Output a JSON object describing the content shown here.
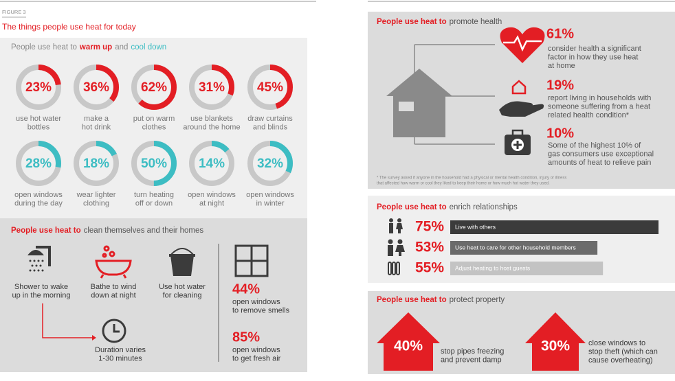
{
  "left": {
    "figure_label": "FIGURE 3",
    "title": "The things people use heat for today",
    "warm_cool": {
      "heading": [
        "People use heat to",
        "warm up",
        "and",
        "cool down"
      ],
      "items": [
        {
          "value": 23,
          "label": "23%",
          "text": [
            "use hot water",
            "bottles"
          ],
          "color": "#e31e24"
        },
        {
          "value": 36,
          "label": "36%",
          "text": [
            "make a",
            "hot drink"
          ],
          "color": "#e31e24"
        },
        {
          "value": 62,
          "label": "62%",
          "text": [
            "put on warm",
            "clothes"
          ],
          "color": "#e31e24"
        },
        {
          "value": 31,
          "label": "31%",
          "text": [
            "use blankets",
            "around the home"
          ],
          "color": "#e31e24"
        },
        {
          "value": 45,
          "label": "45%",
          "text": [
            "draw curtains",
            "and blinds"
          ],
          "color": "#e31e24"
        },
        {
          "value": 28,
          "label": "28%",
          "text": [
            "open windows",
            "during the day"
          ],
          "color": "#3dbdc3"
        },
        {
          "value": 18,
          "label": "18%",
          "text": [
            "wear lighter",
            "clothing"
          ],
          "color": "#3dbdc3"
        },
        {
          "value": 50,
          "label": "50%",
          "text": [
            "turn heating",
            "off or down"
          ],
          "color": "#3dbdc3"
        },
        {
          "value": 14,
          "label": "14%",
          "text": [
            "open windows",
            "at night"
          ],
          "color": "#3dbdc3"
        },
        {
          "value": 32,
          "label": "32%",
          "text": [
            "open windows",
            "in winter"
          ],
          "color": "#3dbdc3"
        }
      ]
    },
    "clean": {
      "heading": [
        "People use heat to",
        "clean themselves and their homes"
      ],
      "icons": [
        {
          "text": [
            "Shower to wake",
            "up in the morning"
          ]
        },
        {
          "text": [
            "Bathe to wind",
            "down at night"
          ]
        },
        {
          "text": [
            "Use hot water",
            "for cleaning"
          ]
        }
      ],
      "duration": [
        "Duration varies",
        "1-30 minutes"
      ],
      "windows": [
        {
          "label": "44%",
          "text": [
            "open windows",
            "to remove smells"
          ]
        },
        {
          "label": "85%",
          "text": [
            "open windows",
            "to get fresh air"
          ]
        }
      ]
    }
  },
  "right": {
    "health": {
      "heading": [
        "People use heat to",
        "promote health"
      ],
      "stats": [
        {
          "label": "61%",
          "text": [
            "consider health a significant",
            "factor in how they use heat",
            "at home"
          ]
        },
        {
          "label": "19%",
          "text": [
            "report living in households with",
            "someone suffering from a heat",
            "related health condition*"
          ]
        },
        {
          "label": "10%",
          "text": [
            "Some of the highest 10% of",
            "gas consumers use exceptional",
            "amounts of heat to relieve pain"
          ]
        }
      ],
      "footnote": [
        "* The survey asked if anyone in the household had a physical or mental health condition, injury or illness",
        "that affected how warm or cool they liked to keep their home or how much hot water they used."
      ]
    },
    "relationships": {
      "heading": [
        "People use heat to",
        "enrich relationships"
      ],
      "rows": [
        {
          "value": 75,
          "label": "75%",
          "text": "Live with others",
          "color": "#3b3b3b"
        },
        {
          "value": 53,
          "label": "53%",
          "text": "Use heat to care for other household members",
          "color": "#6b6b6b"
        },
        {
          "value": 55,
          "label": "55%",
          "text": "Adjust heating to host guests",
          "color": "#c3c3c3"
        }
      ]
    },
    "property": {
      "heading": [
        "People use heat to",
        "protect property"
      ],
      "items": [
        {
          "label": "40%",
          "text": [
            "stop pipes freezing",
            "and prevent damp"
          ]
        },
        {
          "label": "30%",
          "text": [
            "close windows to",
            "stop theft (which can",
            "cause overheating)"
          ]
        }
      ]
    }
  }
}
